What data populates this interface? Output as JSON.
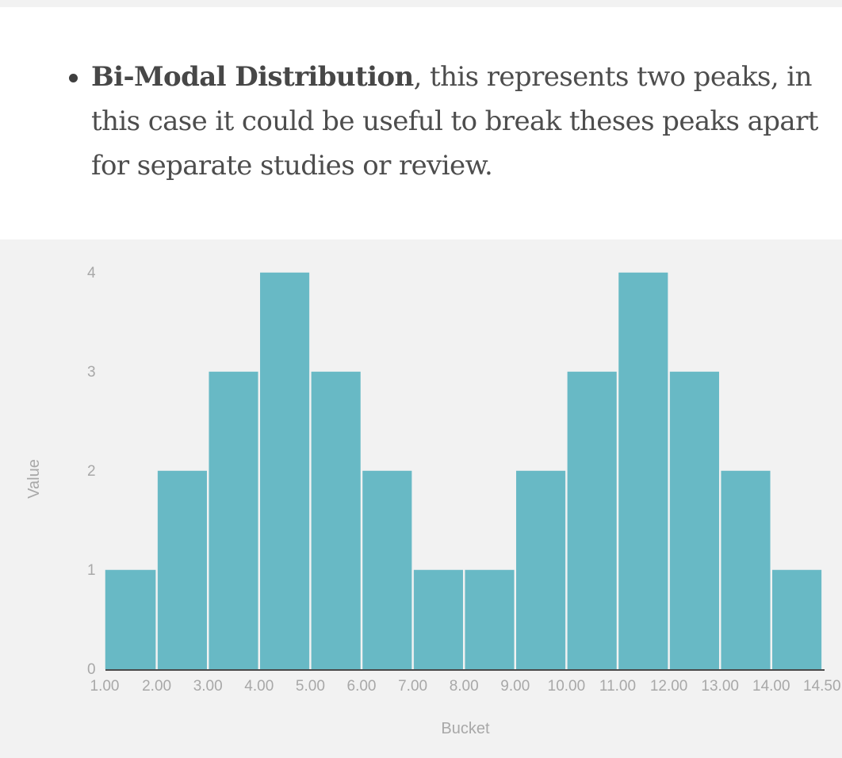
{
  "article": {
    "bullet_strong": "Bi-Modal Distribution",
    "bullet_rest": ", this represents two peaks, in this case it could be useful to break theses peaks apart for separate studies or review."
  },
  "chart_data": {
    "type": "bar",
    "title": "",
    "xlabel": "Bucket",
    "ylabel": "Value",
    "ylim": [
      0,
      4
    ],
    "y_ticks": [
      "0",
      "1",
      "2",
      "3",
      "4"
    ],
    "x_ticks": [
      "1.00",
      "2.00",
      "3.00",
      "4.00",
      "5.00",
      "6.00",
      "7.00",
      "8.00",
      "9.00",
      "10.00",
      "11.00",
      "12.00",
      "13.00",
      "14.00",
      "14.50"
    ],
    "bins": [
      {
        "start": 1.0,
        "value": 1
      },
      {
        "start": 2.0,
        "value": 2
      },
      {
        "start": 3.0,
        "value": 3
      },
      {
        "start": 4.0,
        "value": 4
      },
      {
        "start": 5.0,
        "value": 3
      },
      {
        "start": 6.0,
        "value": 2
      },
      {
        "start": 7.0,
        "value": 1
      },
      {
        "start": 8.0,
        "value": 1
      },
      {
        "start": 9.0,
        "value": 2
      },
      {
        "start": 10.0,
        "value": 3
      },
      {
        "start": 11.0,
        "value": 4
      },
      {
        "start": 12.0,
        "value": 3
      },
      {
        "start": 13.0,
        "value": 2
      },
      {
        "start": 14.0,
        "value": 1
      }
    ],
    "grid": false,
    "bar_color": "#68b9c5",
    "axis_color": "#4a4a4a"
  }
}
